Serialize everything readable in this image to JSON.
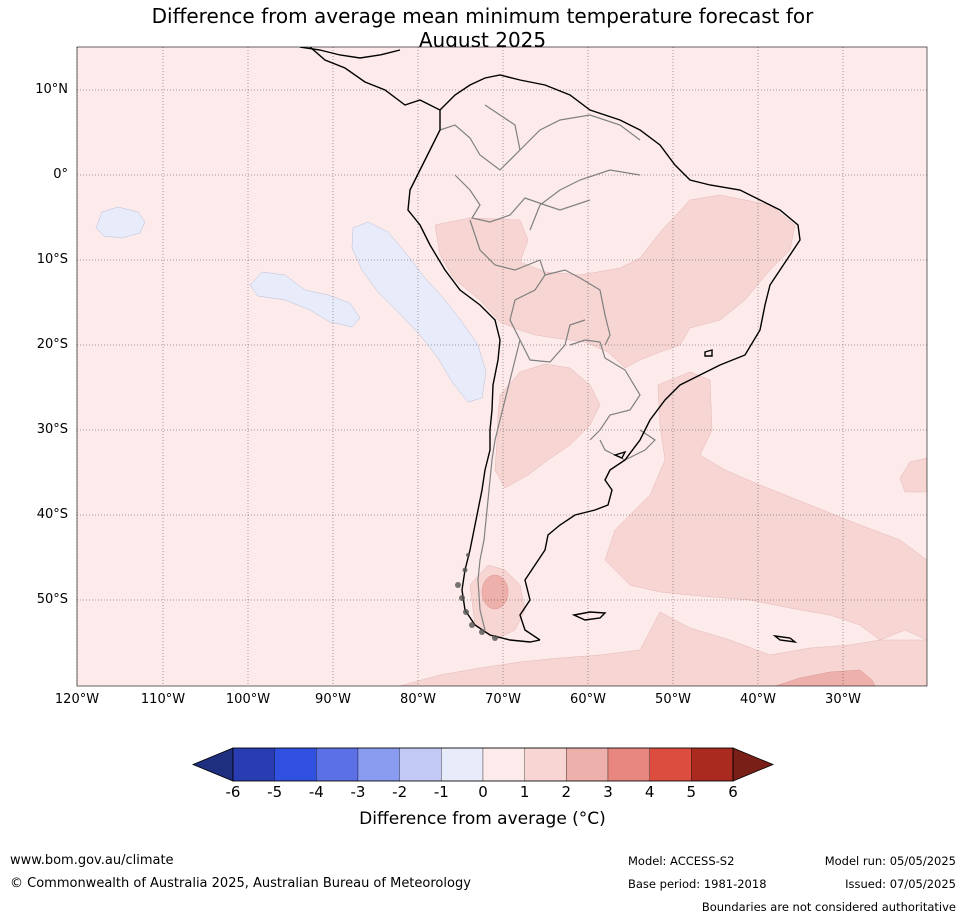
{
  "title_line1": "Difference from average mean minimum temperature forecast for",
  "title_line2": "August 2025",
  "lat_labels": [
    "10°N",
    "0°",
    "10°S",
    "20°S",
    "30°S",
    "40°S",
    "50°S"
  ],
  "lon_labels": [
    "120°W",
    "110°W",
    "100°W",
    "90°W",
    "80°W",
    "70°W",
    "60°W",
    "50°W",
    "40°W",
    "30°W"
  ],
  "colorbar": {
    "ticks": [
      "-6",
      "-5",
      "-4",
      "-3",
      "-2",
      "-1",
      "0",
      "1",
      "2",
      "3",
      "4",
      "5",
      "6"
    ],
    "colors": [
      "#1f2f80",
      "#2a3cb2",
      "#3050e0",
      "#5a70e4",
      "#8a9cf0",
      "#c2c9f4",
      "#e8ebfa",
      "#fcebea",
      "#f6d5d3",
      "#eeb0ab",
      "#e88780",
      "#dc4d40",
      "#aa2a20",
      "#7a1e18"
    ],
    "label": "Difference from average (°C)"
  },
  "footer": {
    "url": "www.bom.gov.au/climate",
    "copyright": "© Commonwealth of Australia 2025, Australian Bureau of Meteorology",
    "model": "Model: ACCESS-S2",
    "base_period": "Base period: 1981-2018",
    "model_run": "Model run: 05/05/2025",
    "issued": "Issued: 07/05/2025",
    "disclaimer": "Boundaries are not considered authoritative"
  }
}
